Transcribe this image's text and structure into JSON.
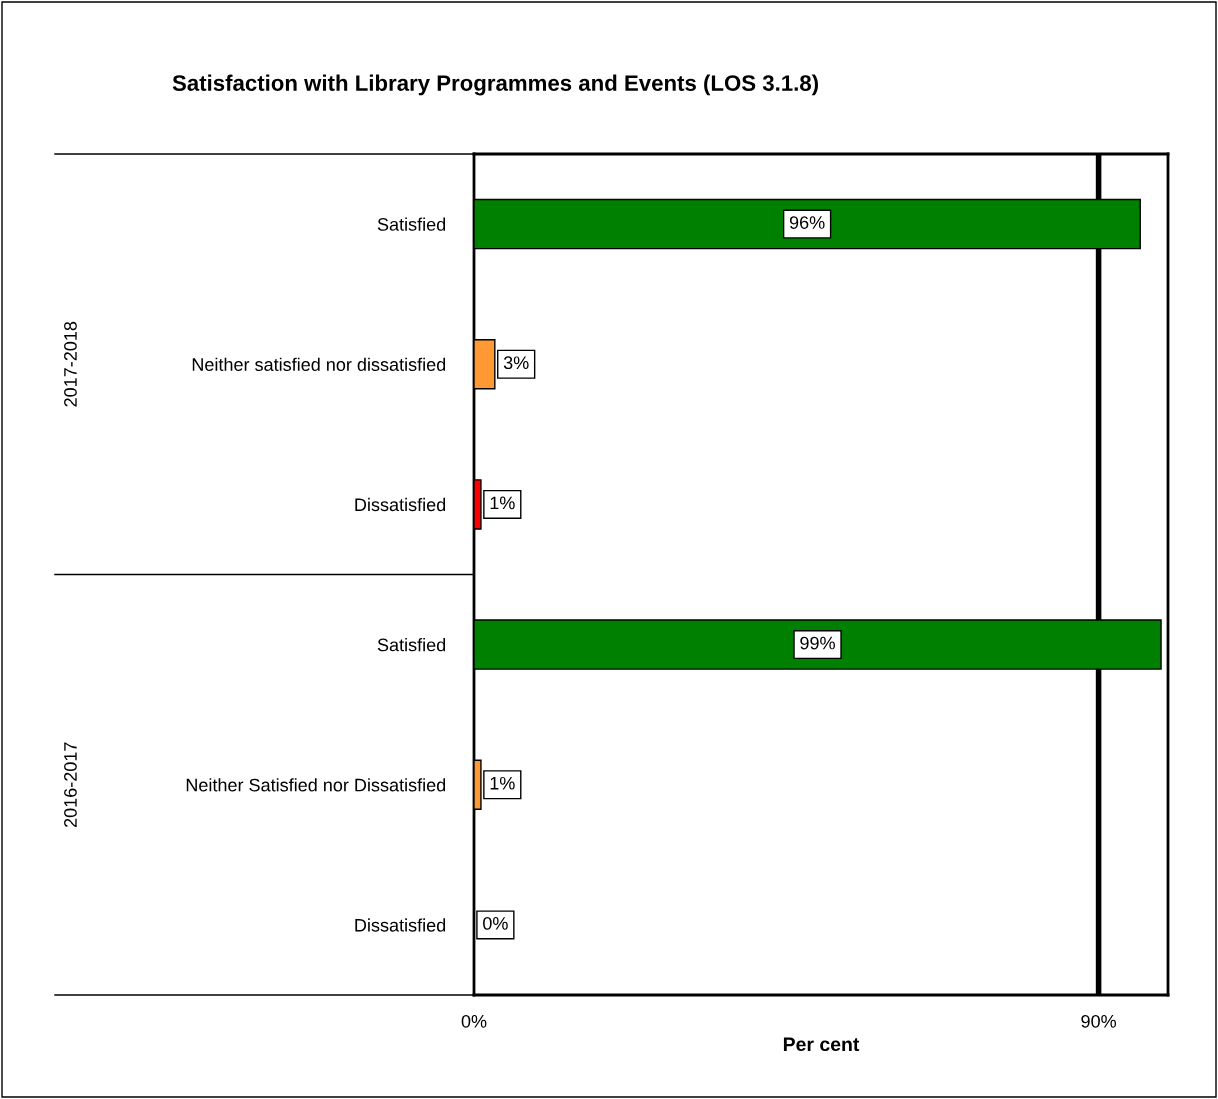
{
  "chart_data": {
    "type": "bar",
    "orientation": "horizontal",
    "title": "Satisfaction with Library Programmes and Events (LOS 3.1.8)",
    "xlabel": "Per cent",
    "categories": [
      "Satisfied",
      "Neither satisfied nor dissatisfied",
      "Dissatisfied",
      "Satisfied",
      "Neither Satisfied nor Dissatisfied",
      "Dissatisfied"
    ],
    "values": [
      96,
      3,
      1,
      99,
      1,
      0
    ],
    "colors": [
      "#008000",
      "#ff9933",
      "#ff0000",
      "#008000",
      "#ff9933",
      "#000000"
    ],
    "value_labels": [
      "96%",
      "3%",
      "1%",
      "99%",
      "1%",
      "0%"
    ],
    "annotations": [
      "2017-2018",
      "2016-2017"
    ],
    "xlim": [
      0,
      100
    ],
    "xticks": [
      {
        "value": 0,
        "label": "0%"
      },
      {
        "value": 90,
        "label": "90%"
      }
    ],
    "ref_lines": [
      {
        "axis": "x",
        "value": 90,
        "label": null,
        "color": "#000000"
      }
    ],
    "grid": false
  }
}
